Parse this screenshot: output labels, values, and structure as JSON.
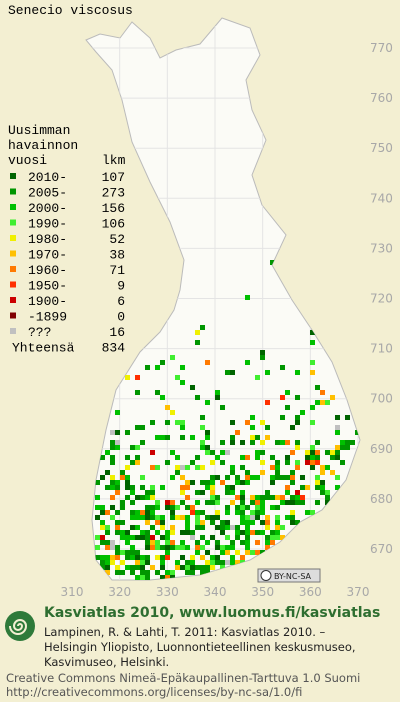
{
  "map": {
    "title": "Senecio viscosus",
    "legend_heading": [
      "Uusimman",
      "havainnon",
      "vuosi"
    ],
    "count_heading": "lkm",
    "legend": [
      {
        "label": "2010-",
        "count": 107,
        "color": "#006400"
      },
      {
        "label": "2005-",
        "count": 273,
        "color": "#009600"
      },
      {
        "label": "2000-",
        "count": 156,
        "color": "#00c000"
      },
      {
        "label": "1990-",
        "count": 106,
        "color": "#40ee30"
      },
      {
        "label": "1980-",
        "count": 52,
        "color": "#f0f000"
      },
      {
        "label": "1970-",
        "count": 38,
        "color": "#ffc000"
      },
      {
        "label": "1960-",
        "count": 71,
        "color": "#ff7a00"
      },
      {
        "label": "1950-",
        "count": 9,
        "color": "#ff3000"
      },
      {
        "label": "1900-",
        "count": 6,
        "color": "#cc0000"
      },
      {
        "label": "-1899",
        "count": 0,
        "color": "#800000"
      },
      {
        "label": "???",
        "count": 16,
        "color": "#c0c0c0"
      }
    ],
    "total_label": "Yhteensä",
    "total": 834,
    "y_ticks": [
      770,
      760,
      750,
      740,
      730,
      720,
      710,
      700,
      690,
      680,
      670
    ],
    "x_ticks": [
      310,
      320,
      330,
      340,
      350,
      360,
      370
    ],
    "license_badge": "BY-NC-SA"
  },
  "footer": {
    "heading": "Kasviatlas 2010, www.luomus.fi/kasviatlas",
    "citation": [
      "Lampinen, R. & Lahti, T. 2011: Kasviatlas 2010. –",
      "Helsingin Yliopisto, Luonnontieteellinen keskusmuseo,",
      "Kasvimuseo, Helsinki."
    ],
    "license": [
      "Creative Commons Nimeä-Epäkaupallinen-Tarttuva 1.0 Suomi",
      "http://creativecommons.org/licenses/by-nc-sa/1.0/fi"
    ]
  }
}
